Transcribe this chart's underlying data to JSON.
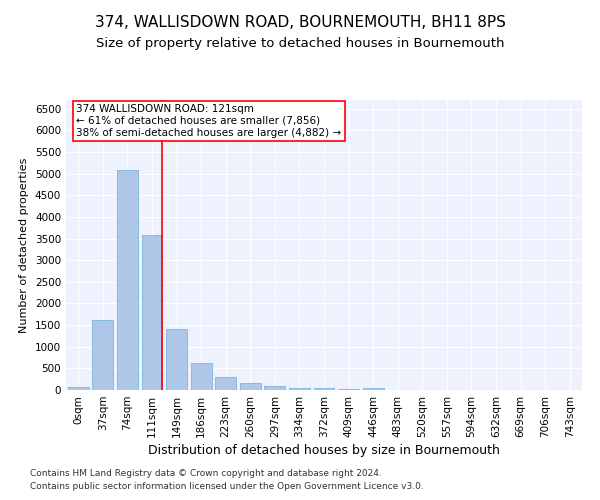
{
  "title": "374, WALLISDOWN ROAD, BOURNEMOUTH, BH11 8PS",
  "subtitle": "Size of property relative to detached houses in Bournemouth",
  "xlabel": "Distribution of detached houses by size in Bournemouth",
  "ylabel": "Number of detached properties",
  "footnote1": "Contains HM Land Registry data © Crown copyright and database right 2024.",
  "footnote2": "Contains public sector information licensed under the Open Government Licence v3.0.",
  "bar_labels": [
    "0sqm",
    "37sqm",
    "74sqm",
    "111sqm",
    "149sqm",
    "186sqm",
    "223sqm",
    "260sqm",
    "297sqm",
    "334sqm",
    "372sqm",
    "409sqm",
    "446sqm",
    "483sqm",
    "520sqm",
    "557sqm",
    "594sqm",
    "632sqm",
    "669sqm",
    "706sqm",
    "743sqm"
  ],
  "bar_values": [
    70,
    1620,
    5080,
    3570,
    1410,
    620,
    310,
    155,
    90,
    55,
    35,
    20,
    55,
    5,
    5,
    5,
    5,
    5,
    5,
    5,
    5
  ],
  "bar_color": "#aec6e8",
  "bar_edge_color": "#6baed6",
  "annotation_text": "374 WALLISDOWN ROAD: 121sqm\n← 61% of detached houses are smaller (7,856)\n38% of semi-detached houses are larger (4,882) →",
  "annotation_box_color": "white",
  "annotation_box_edge_color": "red",
  "vline_color": "red",
  "ylim": [
    0,
    6700
  ],
  "yticks": [
    0,
    500,
    1000,
    1500,
    2000,
    2500,
    3000,
    3500,
    4000,
    4500,
    5000,
    5500,
    6000,
    6500
  ],
  "bg_color": "#eef2ff",
  "grid_color": "white",
  "title_fontsize": 11,
  "subtitle_fontsize": 9.5,
  "xlabel_fontsize": 9,
  "ylabel_fontsize": 8,
  "tick_fontsize": 7.5,
  "annotation_fontsize": 7.5,
  "footnote_fontsize": 6.5
}
